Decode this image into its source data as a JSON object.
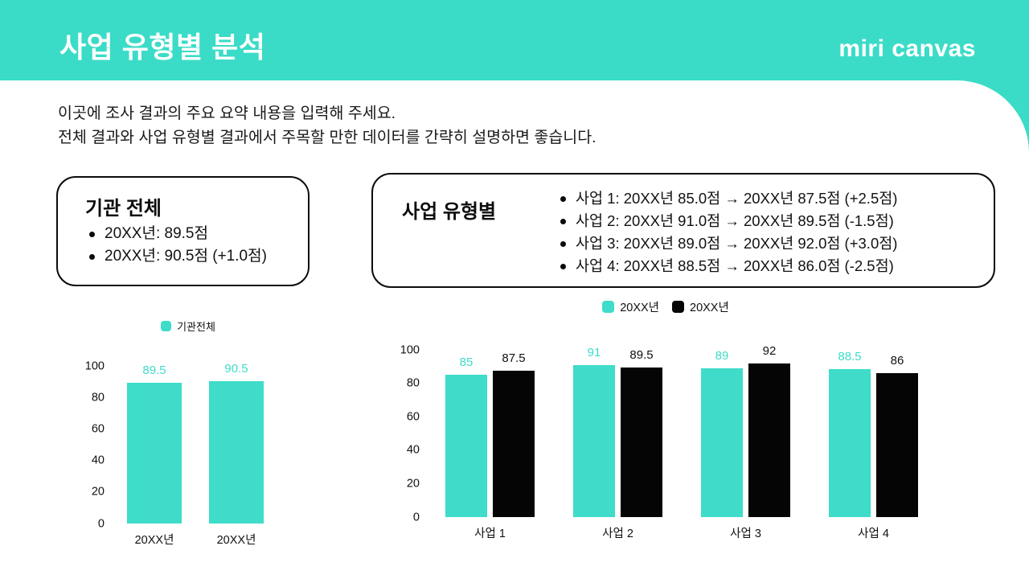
{
  "slide": {
    "title": "사업 유형별 분석",
    "logo": "miri canvas",
    "intro_line1": "이곳에 조사 결과의 주요 요약 내용을 입력해 주세요.",
    "intro_line2": "전체 결과와 사업 유형별 결과에서 주목할 만한 데이터를 간략히 설명하면 좋습니다.",
    "colors": {
      "header_teal": "#3bdcc7",
      "bar_teal": "#3edcc9",
      "bar_black": "#050505",
      "text_dark": "#1a1a1a"
    }
  },
  "boxes": {
    "overall": {
      "title": "기관 전체",
      "bullets": [
        "20XX년: 89.5점",
        "20XX년: 90.5점 (+1.0점)"
      ]
    },
    "by_type": {
      "title": "사업 유형별",
      "bullets": [
        "사업 1: 20XX년 85.0점 → 20XX년 87.5점 (+2.5점)",
        "사업 2: 20XX년 91.0점 → 20XX년 89.5점 (-1.5점)",
        "사업 3: 20XX년 89.0점 → 20XX년 92.0점 (+3.0점)",
        "사업 4: 20XX년 88.5점 → 20XX년 86.0점 (-2.5점)"
      ]
    }
  },
  "chart_data": [
    {
      "type": "bar",
      "title": "",
      "categories": [
        "20XX년",
        "20XX년"
      ],
      "series": [
        {
          "name": "기관전체",
          "color": "#3edcc9",
          "label_color": "#3edcc9",
          "values": [
            89.5,
            90.5
          ],
          "labels": [
            "89.5",
            "90.5"
          ]
        }
      ],
      "ylim": [
        0,
        100
      ],
      "yticks": [
        0,
        20,
        40,
        60,
        80,
        100
      ],
      "grid": false,
      "legend_position": "top"
    },
    {
      "type": "bar",
      "title": "",
      "categories": [
        "사업 1",
        "사업 2",
        "사업 3",
        "사업 4"
      ],
      "series": [
        {
          "name": "20XX년",
          "color": "#3edcc9",
          "label_color": "#3edcc9",
          "values": [
            85,
            91,
            89,
            88.5
          ],
          "labels": [
            "85",
            "91",
            "89",
            "88.5"
          ]
        },
        {
          "name": "20XX년",
          "color": "#050505",
          "label_color": "#111111",
          "values": [
            87.5,
            89.5,
            92,
            86
          ],
          "labels": [
            "87.5",
            "89.5",
            "92",
            "86"
          ]
        }
      ],
      "ylim": [
        0,
        100
      ],
      "yticks": [
        0,
        20,
        40,
        60,
        80,
        100
      ],
      "grid": false,
      "legend_position": "top"
    }
  ]
}
